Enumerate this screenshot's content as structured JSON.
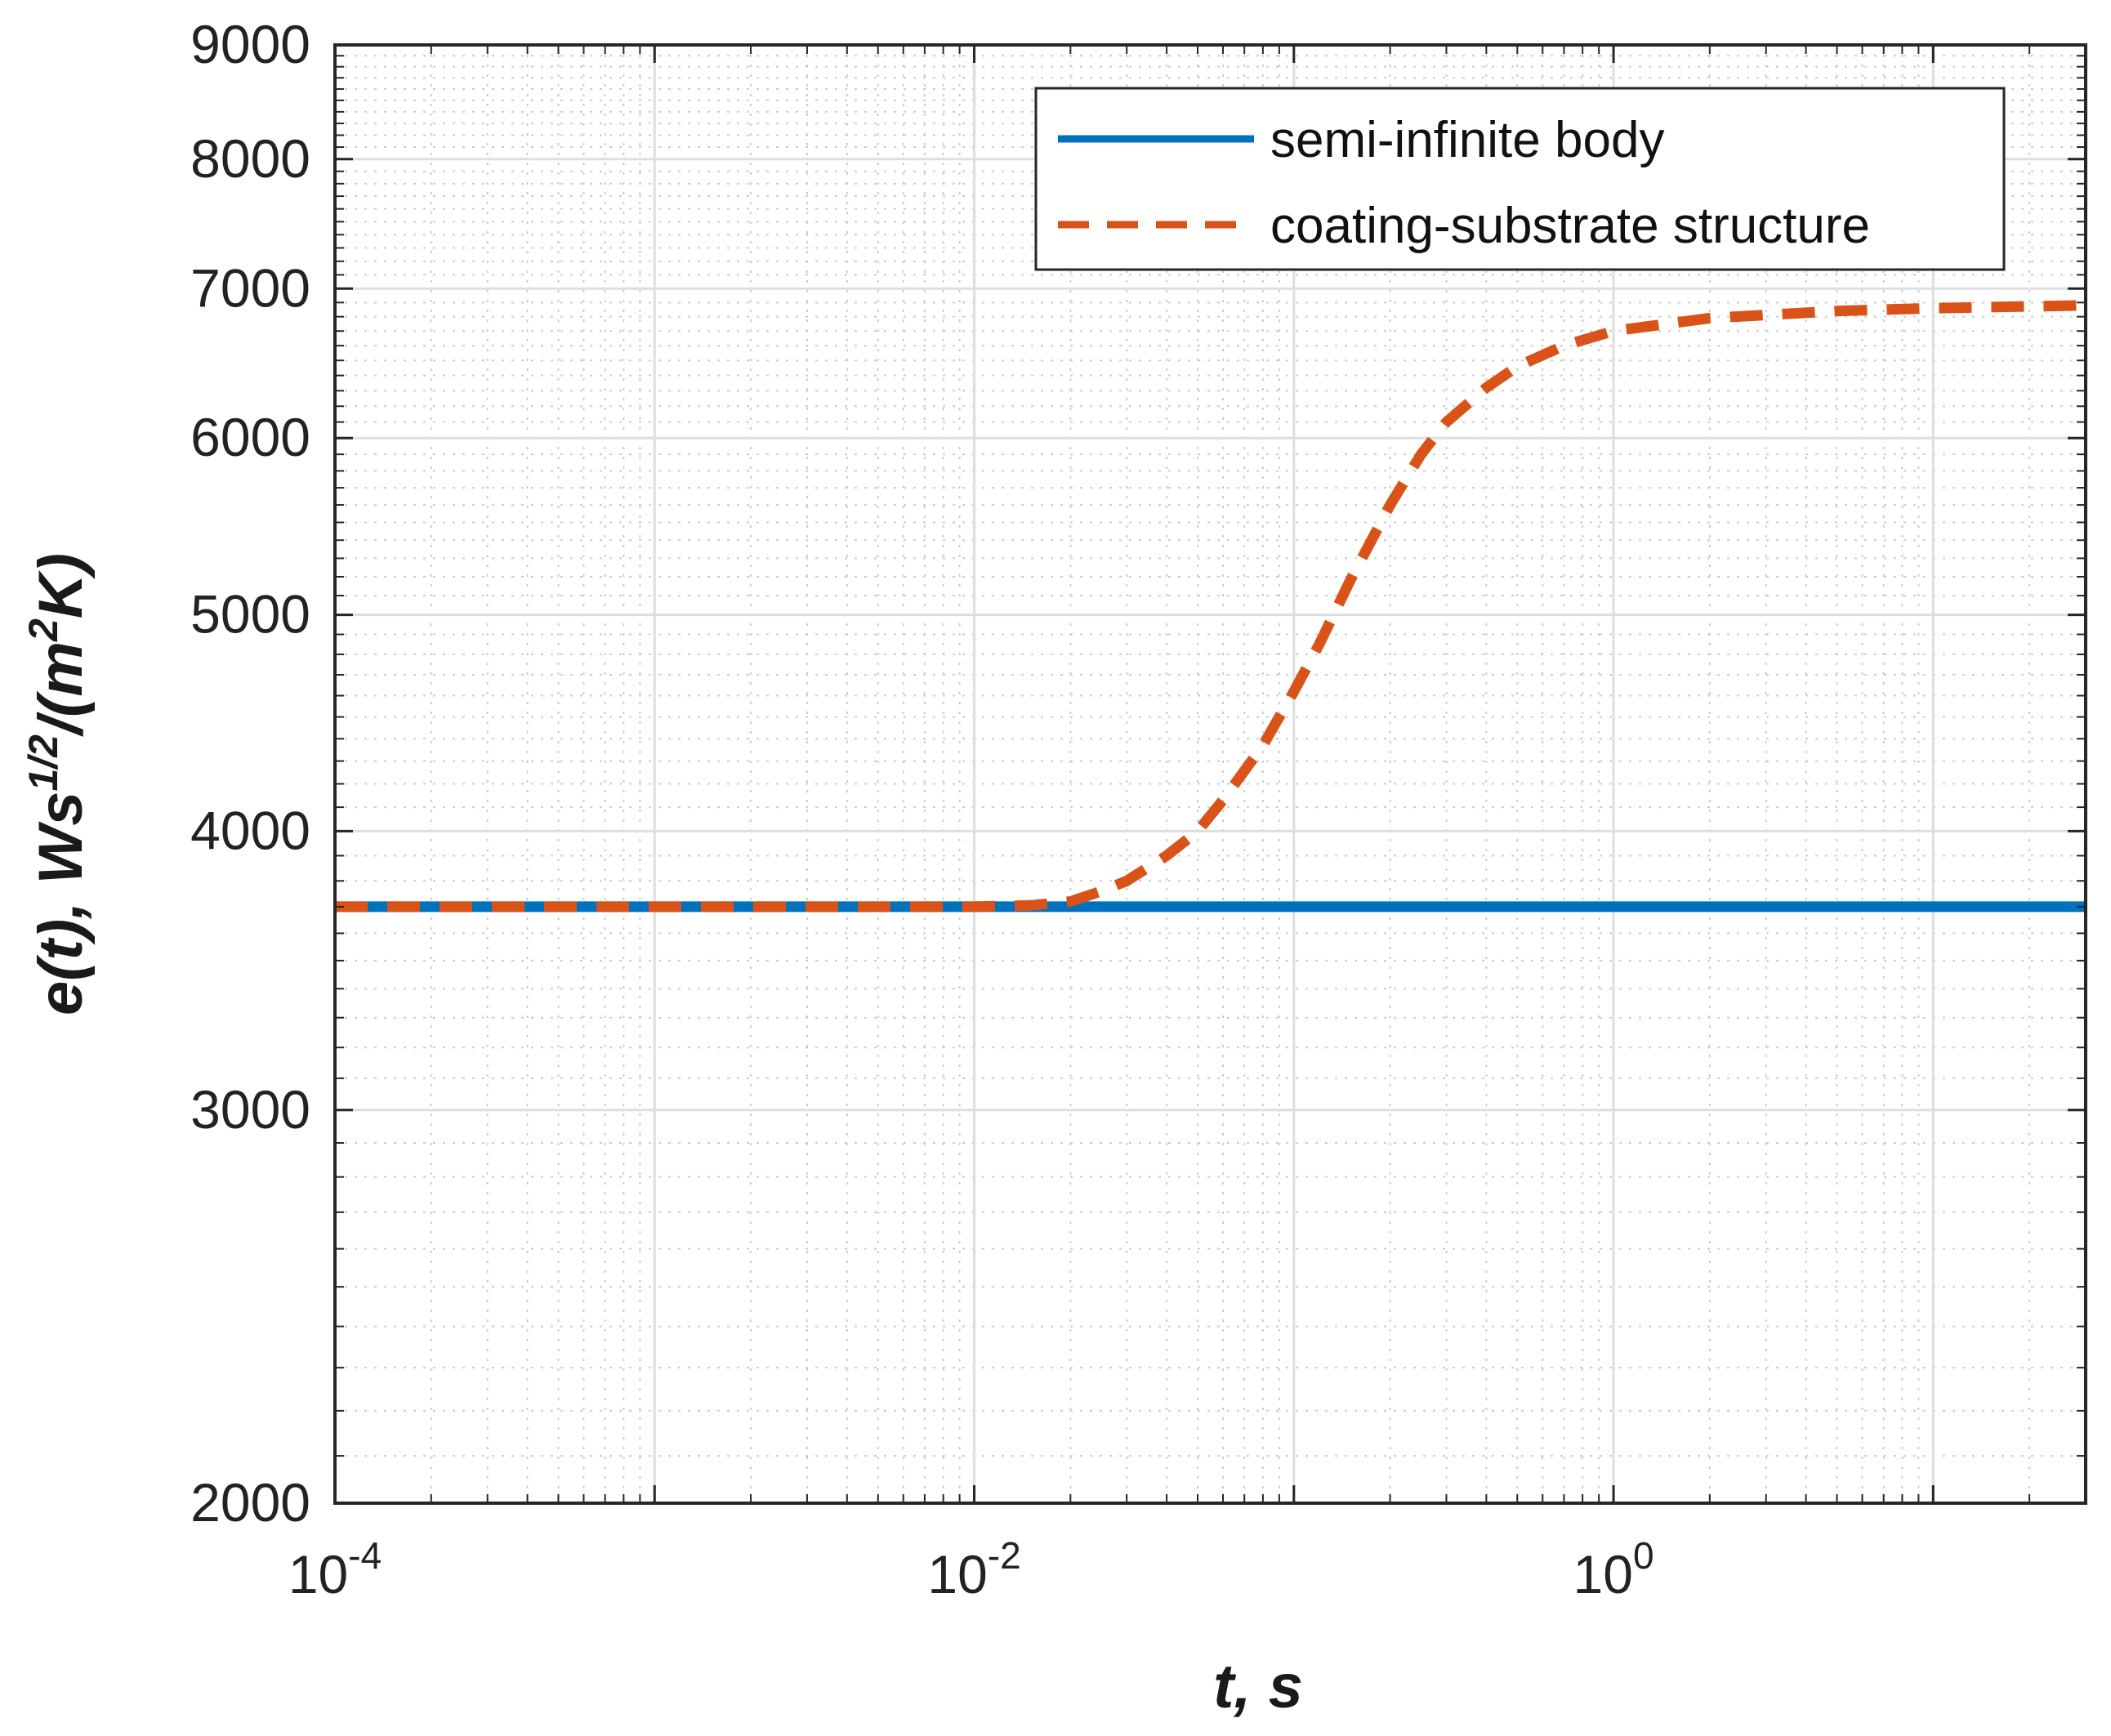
{
  "chart_data": {
    "type": "line",
    "title": "",
    "xlabel": "t, s",
    "ylabel": "e(t), Ws^{1/2}/(m^2K)",
    "xscale": "log",
    "yscale": "log",
    "xlim": [
      0.0001,
      30
    ],
    "ylim": [
      2000,
      9000
    ],
    "grid": true,
    "minor_grid": true,
    "legend_position": "top-right",
    "x_ticks": [
      {
        "value": 0.0001,
        "base": "10",
        "exp": "-4"
      },
      {
        "value": 0.01,
        "base": "10",
        "exp": "-2"
      },
      {
        "value": 1,
        "base": "10",
        "exp": "0"
      }
    ],
    "y_ticks": [
      {
        "value": 2000,
        "label": "2000"
      },
      {
        "value": 3000,
        "label": "3000"
      },
      {
        "value": 4000,
        "label": "4000"
      },
      {
        "value": 5000,
        "label": "5000"
      },
      {
        "value": 6000,
        "label": "6000"
      },
      {
        "value": 7000,
        "label": "7000"
      },
      {
        "value": 8000,
        "label": "8000"
      },
      {
        "value": 9000,
        "label": "9000"
      }
    ],
    "series": [
      {
        "name": "semi-infinite body",
        "color": "#0072BD",
        "style": "solid",
        "x": [
          0.0001,
          30
        ],
        "y": [
          3700,
          3700
        ]
      },
      {
        "name": "coating-substrate structure",
        "color": "#D95319",
        "style": "dashed",
        "x": [
          0.0001,
          0.001,
          0.01,
          0.015,
          0.02,
          0.025,
          0.03,
          0.04,
          0.05,
          0.06,
          0.08,
          0.1,
          0.12,
          0.15,
          0.2,
          0.25,
          0.3,
          0.4,
          0.5,
          0.7,
          1,
          2,
          5,
          10,
          30
        ],
        "y": [
          3700,
          3700,
          3700,
          3705,
          3720,
          3760,
          3800,
          3900,
          4000,
          4130,
          4370,
          4620,
          4850,
          5180,
          5600,
          5900,
          6100,
          6320,
          6460,
          6600,
          6700,
          6790,
          6840,
          6860,
          6880
        ]
      }
    ]
  }
}
